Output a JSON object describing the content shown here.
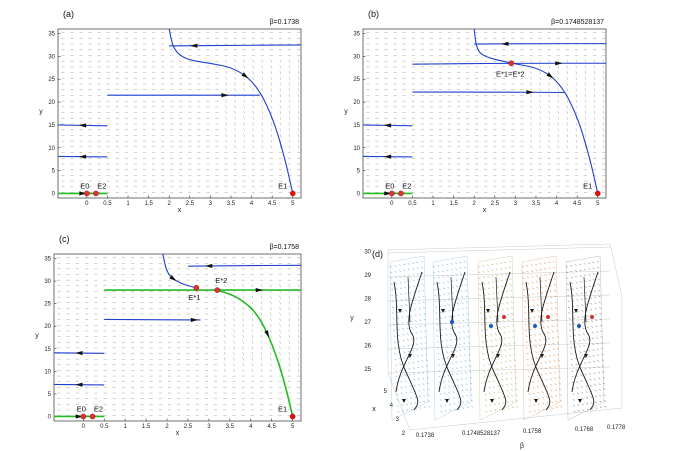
{
  "chart_data": [
    {
      "type": "phase-portrait",
      "panel": "(a)",
      "beta_label": "β=0.1738",
      "xlabel": "x",
      "ylabel": "y",
      "xlim": [
        -0.7,
        5.2
      ],
      "ylim": [
        -1,
        36
      ],
      "xticks": [
        0,
        0.5,
        1,
        1.5,
        2,
        2.5,
        3,
        3.5,
        4,
        4.5,
        5
      ],
      "yticks": [
        0,
        5,
        10,
        15,
        20,
        25,
        30,
        35
      ],
      "equilibria": [
        {
          "label": "E0",
          "sub": "0",
          "x": 0,
          "y": 0,
          "color": "#d33"
        },
        {
          "label": "E2",
          "sub": "2",
          "x": 0.22,
          "y": 0,
          "color": "#d33"
        },
        {
          "label": "E1",
          "sub": "1",
          "x": 5,
          "y": 0,
          "color": "#e01010"
        }
      ],
      "trajectories": [
        {
          "color": "#1f3fd0",
          "points": [
            [
              5.2,
              32.5
            ],
            [
              3.2,
              32.4
            ],
            [
              2.0,
              32.3
            ]
          ]
        },
        {
          "color": "#1f3fd0",
          "points": [
            [
              2.0,
              36
            ],
            [
              2.1,
              31.5
            ],
            [
              2.4,
              29.3
            ],
            [
              3.0,
              28.5
            ],
            [
              3.6,
              27.4
            ],
            [
              4.1,
              24
            ],
            [
              4.5,
              17
            ],
            [
              4.8,
              8
            ],
            [
              5,
              0
            ]
          ]
        },
        {
          "color": "#1f3fd0",
          "points": [
            [
              0.5,
              21.5
            ],
            [
              2.5,
              21.5
            ],
            [
              4.2,
              21.5
            ]
          ]
        },
        {
          "color": "#1f3fd0",
          "points": [
            [
              0.5,
              14.8
            ],
            [
              -0.7,
              15
            ]
          ]
        },
        {
          "color": "#1f3fd0",
          "points": [
            [
              0.5,
              8
            ],
            [
              -0.7,
              8.1
            ]
          ]
        },
        {
          "color": "#22bb22",
          "points": [
            [
              -0.7,
              0
            ],
            [
              0.5,
              0
            ]
          ]
        }
      ]
    },
    {
      "type": "phase-portrait",
      "panel": "(b)",
      "beta_label": "β=0.1748528137",
      "xlabel": "x",
      "ylabel": "y",
      "xlim": [
        -0.7,
        5.2
      ],
      "ylim": [
        -1,
        36
      ],
      "xticks": [
        0,
        0.5,
        1,
        1.5,
        2,
        2.5,
        3,
        3.5,
        4,
        4.5,
        5
      ],
      "yticks": [
        0,
        5,
        10,
        15,
        20,
        25,
        30,
        35
      ],
      "equilibria": [
        {
          "label": "E0",
          "sub": "0",
          "x": 0,
          "y": 0,
          "color": "#d33"
        },
        {
          "label": "E2",
          "sub": "2",
          "x": 0.22,
          "y": 0,
          "color": "#d33"
        },
        {
          "label": "E1",
          "sub": "1",
          "x": 5,
          "y": 0,
          "color": "#e01010"
        },
        {
          "label": "E*1=E*2",
          "x": 2.9,
          "y": 28.5,
          "color": "#d33"
        }
      ],
      "trajectories": [
        {
          "color": "#1f3fd0",
          "points": [
            [
              5.2,
              32.8
            ],
            [
              3.5,
              32.8
            ],
            [
              2.0,
              32.7
            ]
          ]
        },
        {
          "color": "#1f3fd0",
          "points": [
            [
              2.0,
              36
            ],
            [
              2.05,
              32
            ],
            [
              2.2,
              30
            ],
            [
              2.9,
              28.5
            ],
            [
              3.6,
              27.4
            ],
            [
              4.1,
              24
            ],
            [
              4.5,
              17
            ],
            [
              4.8,
              8
            ],
            [
              5,
              0
            ]
          ]
        },
        {
          "color": "#1f3fd0",
          "points": [
            [
              0.5,
              28.3
            ],
            [
              2.9,
              28.5
            ],
            [
              5.2,
              28.5
            ]
          ]
        },
        {
          "color": "#1f3fd0",
          "points": [
            [
              0.5,
              22.2
            ],
            [
              2.5,
              22.2
            ],
            [
              4.2,
              22.1
            ]
          ]
        },
        {
          "color": "#1f3fd0",
          "points": [
            [
              0.5,
              14.8
            ],
            [
              -0.7,
              15
            ]
          ]
        },
        {
          "color": "#1f3fd0",
          "points": [
            [
              0.5,
              8
            ],
            [
              -0.7,
              8.1
            ]
          ]
        },
        {
          "color": "#22bb22",
          "points": [
            [
              -0.7,
              0
            ],
            [
              0.5,
              0
            ]
          ]
        }
      ]
    },
    {
      "type": "phase-portrait",
      "panel": "(c)",
      "beta_label": "β=0.1758",
      "xlabel": "x",
      "ylabel": "y",
      "xlim": [
        -0.7,
        5.2
      ],
      "ylim": [
        -1,
        36
      ],
      "xticks": [
        0,
        0.5,
        1,
        1.5,
        2,
        2.5,
        3,
        3.5,
        4,
        4.5,
        5
      ],
      "yticks": [
        0,
        5,
        10,
        15,
        20,
        25,
        30,
        35
      ],
      "equilibria": [
        {
          "label": "E0",
          "sub": "0",
          "x": 0,
          "y": 0,
          "color": "#d33"
        },
        {
          "label": "E2",
          "sub": "2",
          "x": 0.22,
          "y": 0,
          "color": "#d33"
        },
        {
          "label": "E1",
          "sub": "1",
          "x": 5,
          "y": 0,
          "color": "#e01010"
        },
        {
          "label": "E*1",
          "x": 2.7,
          "y": 28.5,
          "color": "#d33"
        },
        {
          "label": "E*2",
          "x": 3.2,
          "y": 28.0,
          "color": "#d33"
        }
      ],
      "trajectories": [
        {
          "color": "#1f3fd0",
          "points": [
            [
              5.2,
              33.5
            ],
            [
              3.5,
              33.4
            ],
            [
              2.5,
              33.3
            ]
          ]
        },
        {
          "color": "#1f3fd0",
          "points": [
            [
              1.9,
              36
            ],
            [
              2.0,
              31.5
            ],
            [
              2.3,
              29.5
            ],
            [
              2.7,
              28.5
            ]
          ]
        },
        {
          "color": "#22bb22",
          "points": [
            [
              0.5,
              28.0
            ],
            [
              3.2,
              28.0
            ],
            [
              5.2,
              28.0
            ]
          ]
        },
        {
          "color": "#22bb22",
          "points": [
            [
              3.2,
              28.0
            ],
            [
              3.7,
              26.5
            ],
            [
              4.2,
              22.5
            ],
            [
              4.6,
              14
            ],
            [
              4.85,
              6
            ],
            [
              5,
              0
            ]
          ]
        },
        {
          "color": "#1f3fd0",
          "points": [
            [
              0.5,
              21.5
            ],
            [
              2.5,
              21.4
            ],
            [
              2.8,
              21.4
            ]
          ]
        },
        {
          "color": "#1f3fd0",
          "points": [
            [
              0.5,
              14.0
            ],
            [
              -0.7,
              14.1
            ]
          ]
        },
        {
          "color": "#1f3fd0",
          "points": [
            [
              0.5,
              7.0
            ],
            [
              -0.7,
              7.1
            ]
          ]
        },
        {
          "color": "#22bb22",
          "points": [
            [
              -0.7,
              0
            ],
            [
              0.5,
              0
            ]
          ]
        }
      ]
    },
    {
      "type": "3d-phase-portraits",
      "panel": "(d)",
      "xlabel": "x",
      "ylabel": "y",
      "zlabel": "β",
      "beta_ticks": [
        "0.1738",
        "0.1748528137",
        "0.1758",
        "0.1768",
        "0.1778"
      ],
      "y_ticks": [
        25,
        26,
        27,
        28,
        29,
        30
      ],
      "x_ticks": [
        2,
        3,
        4,
        5
      ],
      "sheet_colors": [
        "#5aa0c8",
        "#5aa0c8",
        "#9ea54a",
        "#d07a3a",
        "#707070"
      ]
    }
  ]
}
